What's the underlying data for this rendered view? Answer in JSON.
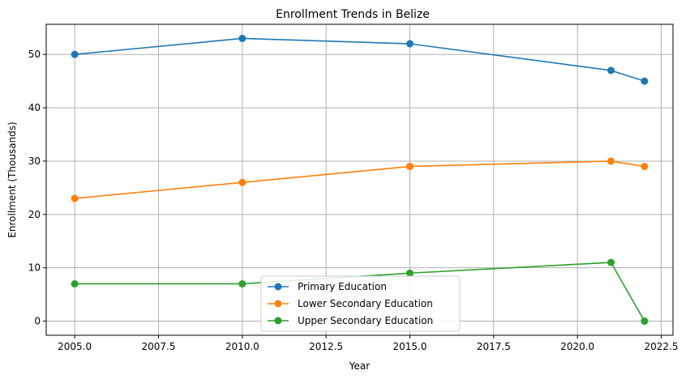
{
  "chart_data": {
    "type": "line",
    "title": "Enrollment Trends in Belize",
    "xlabel": "Year",
    "ylabel": "Enrollment (Thousands)",
    "xlim": [
      2004.15,
      2022.85
    ],
    "ylim": [
      -2.65,
      55.65
    ],
    "xticks": [
      2005.0,
      2007.5,
      2010.0,
      2012.5,
      2015.0,
      2017.5,
      2020.0,
      2022.5
    ],
    "xtick_labels": [
      "2005.0",
      "2007.5",
      "2010.0",
      "2012.5",
      "2015.0",
      "2017.5",
      "2020.0",
      "2022.5"
    ],
    "yticks": [
      0,
      10,
      20,
      30,
      40,
      50
    ],
    "ytick_labels": [
      "0",
      "10",
      "20",
      "30",
      "40",
      "50"
    ],
    "grid": true,
    "legend_position": "lower-center",
    "x": [
      2005,
      2010,
      2015,
      2021,
      2022
    ],
    "series": [
      {
        "name": "Primary Education",
        "color": "#1f77b4",
        "values": [
          50,
          53,
          52,
          47,
          45
        ]
      },
      {
        "name": "Lower Secondary Education",
        "color": "#ff7f0e",
        "values": [
          23,
          26,
          29,
          30,
          29
        ]
      },
      {
        "name": "Upper Secondary Education",
        "color": "#2ca02c",
        "values": [
          7,
          7,
          9,
          11,
          0
        ]
      }
    ]
  }
}
